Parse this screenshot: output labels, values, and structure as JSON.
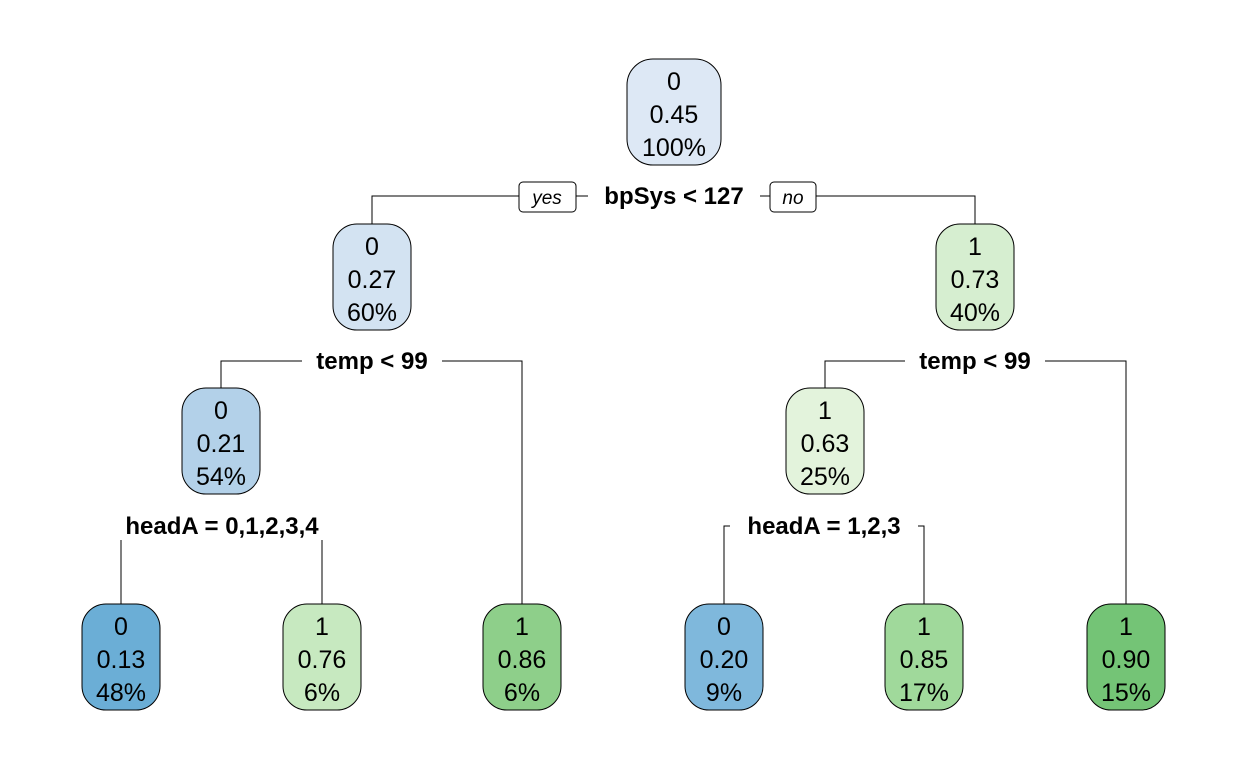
{
  "tree": {
    "nodes": [
      {
        "id": "n1",
        "class": "0",
        "prob": "0.45",
        "pct": "100%",
        "fill": "#dde8f5"
      },
      {
        "id": "n2",
        "class": "0",
        "prob": "0.27",
        "pct": "60%",
        "fill": "#d3e3f2"
      },
      {
        "id": "n3",
        "class": "1",
        "prob": "0.73",
        "pct": "40%",
        "fill": "#d6eed0"
      },
      {
        "id": "n4",
        "class": "0",
        "prob": "0.21",
        "pct": "54%",
        "fill": "#b3d1e9"
      },
      {
        "id": "n5",
        "class": "1",
        "prob": "0.63",
        "pct": "25%",
        "fill": "#e3f3dc"
      },
      {
        "id": "n6",
        "class": "0",
        "prob": "0.13",
        "pct": "48%",
        "fill": "#6baed6"
      },
      {
        "id": "n7",
        "class": "1",
        "prob": "0.76",
        "pct": "6%",
        "fill": "#c7e9c0"
      },
      {
        "id": "n8",
        "class": "1",
        "prob": "0.86",
        "pct": "6%",
        "fill": "#8ecf8a"
      },
      {
        "id": "n9",
        "class": "0",
        "prob": "0.20",
        "pct": "9%",
        "fill": "#7fb8dc"
      },
      {
        "id": "n10",
        "class": "1",
        "prob": "0.85",
        "pct": "17%",
        "fill": "#a0d99b"
      },
      {
        "id": "n11",
        "class": "1",
        "prob": "0.90",
        "pct": "15%",
        "fill": "#74c476"
      }
    ],
    "splits": {
      "root": "bpSys < 127",
      "left": "temp < 99",
      "right": "temp < 99",
      "left_left": "headA = 0,1,2,3,4",
      "right_left": "headA = 1,2,3"
    },
    "edge_labels": {
      "yes": "yes",
      "no": "no"
    }
  }
}
